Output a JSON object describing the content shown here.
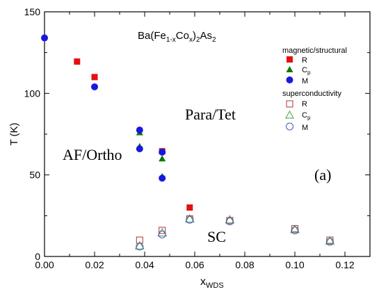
{
  "chart_data": {
    "type": "scatter",
    "title_parts": {
      "a": "Ba(Fe",
      "b": "1-x",
      "c": "Co",
      "d": "x",
      "e": ")",
      "f": "2",
      "g": "As",
      "h": "2"
    },
    "xlabel": "x",
    "xlabel_sub": "WDS",
    "ylabel": "T (K)",
    "xlim": [
      0.0,
      0.13
    ],
    "ylim": [
      0,
      150
    ],
    "xticks": [
      "0.00",
      "0.02",
      "0.04",
      "0.06",
      "0.08",
      "0.10",
      "0.12"
    ],
    "yticks": [
      "0",
      "50",
      "100",
      "150"
    ],
    "grid": false,
    "legend_position": "right",
    "legend": {
      "group1_title": "magnetic/structural",
      "group2_title": "superconductivity",
      "entries": [
        {
          "label": "R",
          "sub": ""
        },
        {
          "label": "C",
          "sub": "p"
        },
        {
          "label": "M",
          "sub": ""
        }
      ]
    },
    "annotations": {
      "para": "Para/Tet",
      "af": "AF/Ortho",
      "sc": "SC",
      "panel": "(a)"
    },
    "series": [
      {
        "group": "magnetic/structural",
        "method": "R",
        "marker": "square-filled",
        "color": "#e41010",
        "points": [
          [
            0.013,
            119.5
          ],
          [
            0.02,
            110.0
          ],
          [
            0.047,
            64.5
          ],
          [
            0.058,
            30.0
          ]
        ]
      },
      {
        "group": "magnetic/structural",
        "method": "Cp",
        "marker": "triangle-filled",
        "color": "#0a7a0a",
        "points": [
          [
            0.038,
            76.0
          ],
          [
            0.038,
            67.5
          ],
          [
            0.047,
            60.0
          ],
          [
            0.047,
            49.0
          ]
        ]
      },
      {
        "group": "magnetic/structural",
        "method": "M",
        "marker": "circle-filled",
        "color": "#1818e0",
        "points": [
          [
            0.0,
            134.0
          ],
          [
            0.02,
            104.0
          ],
          [
            0.038,
            77.5
          ],
          [
            0.038,
            66.0
          ],
          [
            0.047,
            64.0
          ],
          [
            0.047,
            48.0
          ]
        ]
      },
      {
        "group": "superconductivity",
        "method": "R",
        "marker": "square-open",
        "color": "#b03030",
        "points": [
          [
            0.038,
            10.0
          ],
          [
            0.047,
            16.0
          ],
          [
            0.058,
            23.0
          ],
          [
            0.074,
            22.0
          ],
          [
            0.1,
            17.0
          ],
          [
            0.114,
            10.0
          ]
        ]
      },
      {
        "group": "superconductivity",
        "method": "Cp",
        "marker": "triangle-open",
        "color": "#40a040",
        "points": [
          [
            0.038,
            6.5
          ],
          [
            0.047,
            14.5
          ],
          [
            0.058,
            23.0
          ],
          [
            0.074,
            22.5
          ],
          [
            0.1,
            16.5
          ],
          [
            0.114,
            9.5
          ]
        ]
      },
      {
        "group": "superconductivity",
        "method": "M",
        "marker": "circle-open",
        "color": "#5050c8",
        "points": [
          [
            0.038,
            6.0
          ],
          [
            0.047,
            13.5
          ],
          [
            0.058,
            22.5
          ],
          [
            0.074,
            21.5
          ],
          [
            0.1,
            16.0
          ],
          [
            0.114,
            9.0
          ]
        ]
      }
    ]
  }
}
